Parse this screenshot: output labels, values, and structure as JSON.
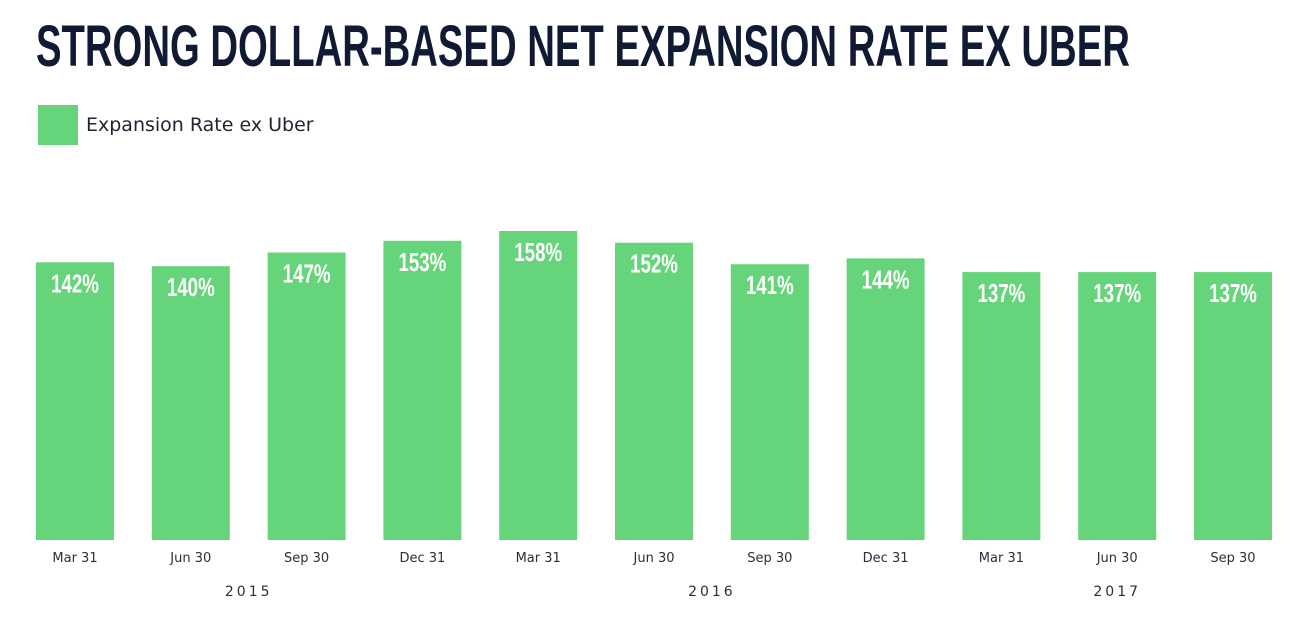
{
  "chart_data": {
    "type": "bar",
    "title": "STRONG DOLLAR-BASED NET EXPANSION RATE EX UBER",
    "legend": {
      "label": "Expansion Rate ex Uber",
      "color": "#66d47a",
      "placement": "top-left"
    },
    "categories": [
      "Mar 31",
      "Jun 30",
      "Sep 30",
      "Dec 31",
      "Mar 31",
      "Jun 30",
      "Sep 30",
      "Dec 31",
      "Mar 31",
      "Jun 30",
      "Sep 30"
    ],
    "values": [
      142,
      140,
      147,
      153,
      158,
      152,
      141,
      144,
      137,
      137,
      137
    ],
    "value_labels": [
      "142%",
      "140%",
      "147%",
      "153%",
      "158%",
      "152%",
      "141%",
      "144%",
      "137%",
      "137%",
      "137%"
    ],
    "year_groups": [
      {
        "label": "2015",
        "start": 0,
        "end": 3
      },
      {
        "label": "2016",
        "start": 4,
        "end": 7
      },
      {
        "label": "2017",
        "start": 8,
        "end": 10
      }
    ],
    "ylim": [
      0,
      158
    ],
    "grid": false,
    "bar_color": "#66d47a"
  }
}
